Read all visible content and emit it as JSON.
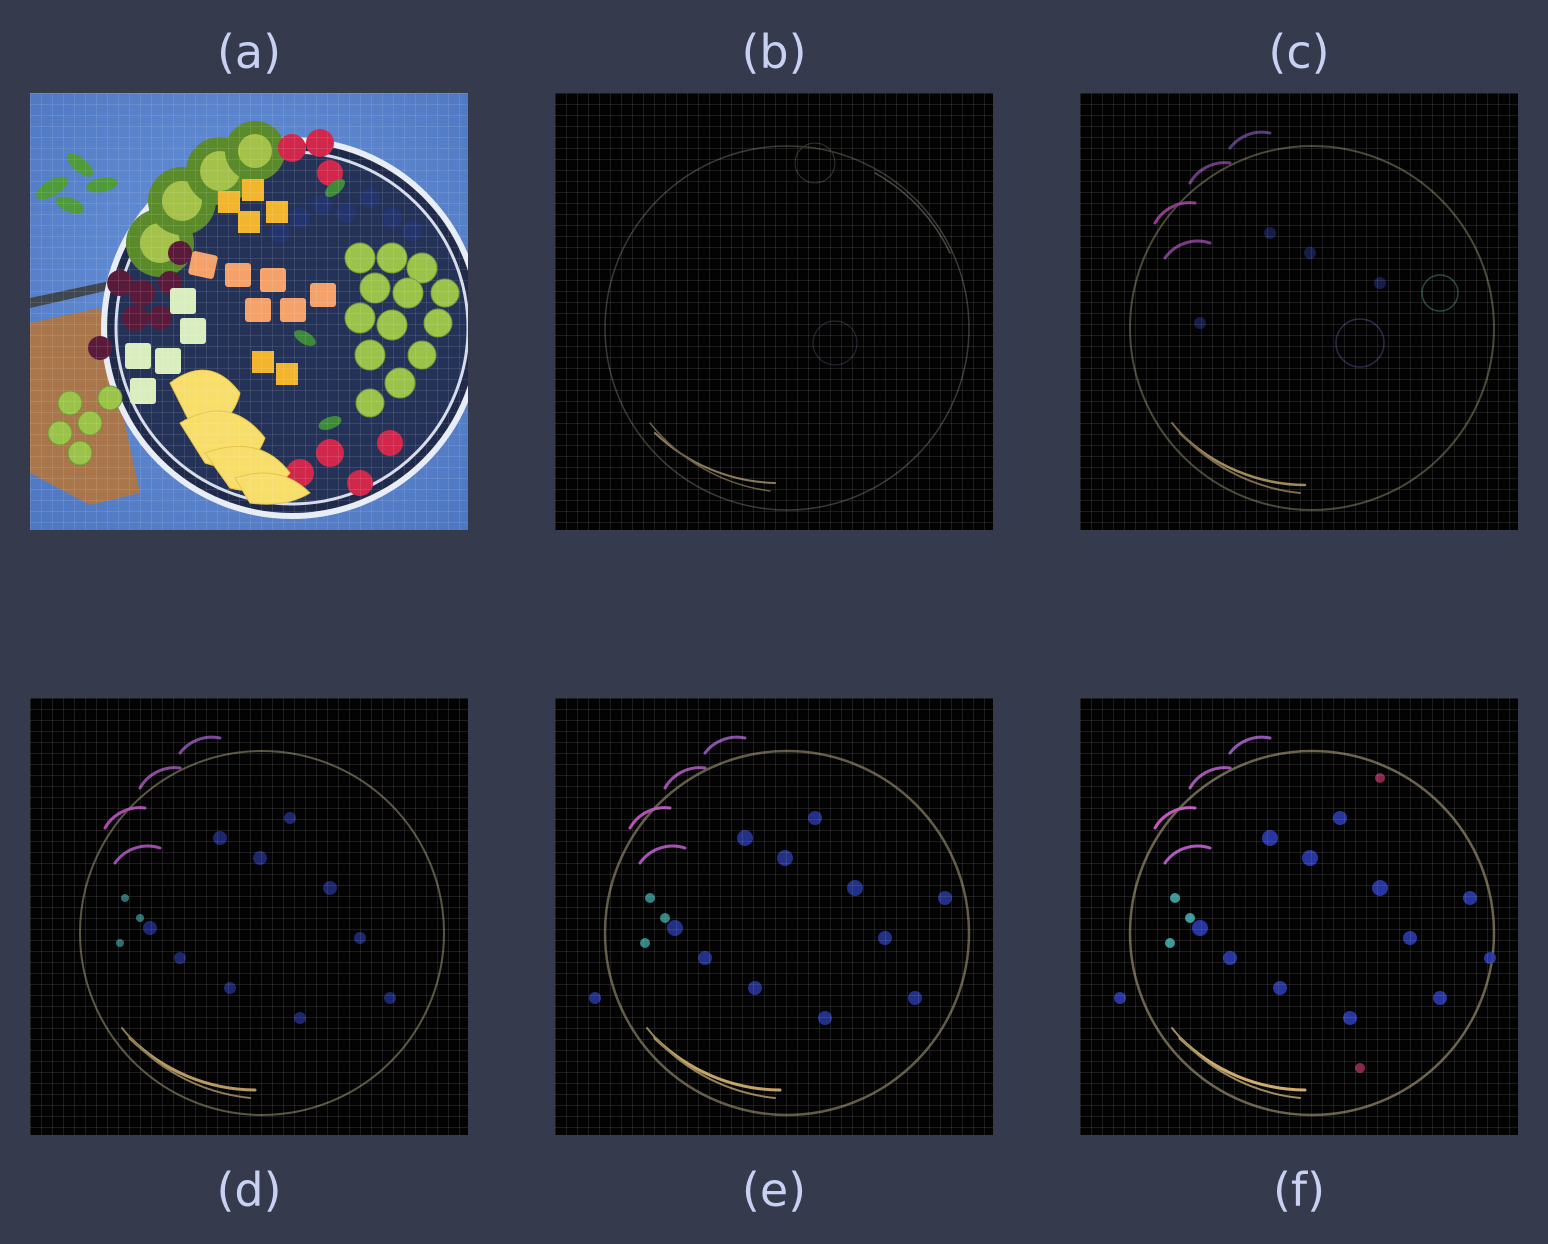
{
  "panels": [
    {
      "caption": "(a)"
    },
    {
      "caption": "(b)"
    },
    {
      "caption": "(c)"
    },
    {
      "caption": "(d)"
    },
    {
      "caption": "(e)"
    },
    {
      "caption": "(f)"
    }
  ],
  "colors": {
    "background": "#353a4d",
    "caption_text": "#c9d1f2",
    "photo_bg": "#5b86cf",
    "feature_bg": "#030303"
  }
}
